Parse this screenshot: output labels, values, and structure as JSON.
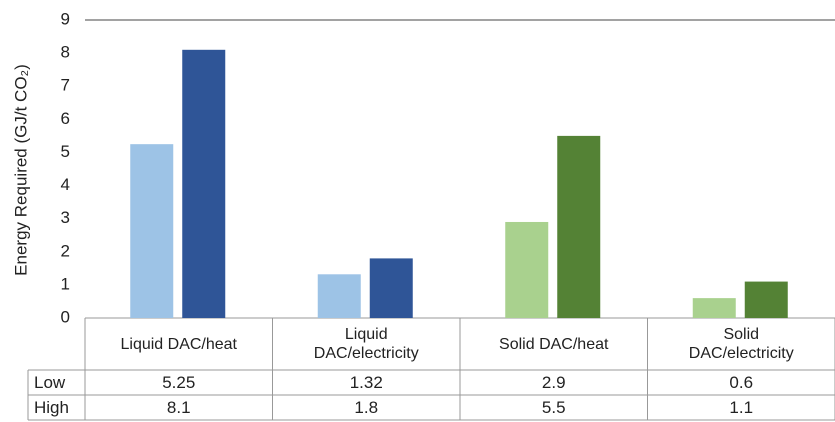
{
  "chart_data": {
    "type": "bar",
    "y_axis_label": "Energy Required (GJ/t CO₂)",
    "categories": [
      "Liquid DAC/heat",
      "Liquid DAC/electricity",
      "Solid DAC/heat",
      "Solid DAC/electricity"
    ],
    "series": [
      {
        "name": "Low",
        "colors": [
          "#9dc3e6",
          "#9dc3e6",
          "#a9d18e",
          "#a9d18e"
        ],
        "values": [
          5.25,
          1.32,
          2.9,
          0.6
        ]
      },
      {
        "name": "High",
        "colors": [
          "#2f5597",
          "#2f5597",
          "#548235",
          "#548235"
        ],
        "values": [
          8.1,
          1.8,
          5.5,
          1.1
        ]
      }
    ],
    "ylim": [
      0,
      9
    ],
    "yticks": [
      0,
      1,
      2,
      3,
      4,
      5,
      6,
      7,
      8,
      9
    ],
    "grid": false
  }
}
